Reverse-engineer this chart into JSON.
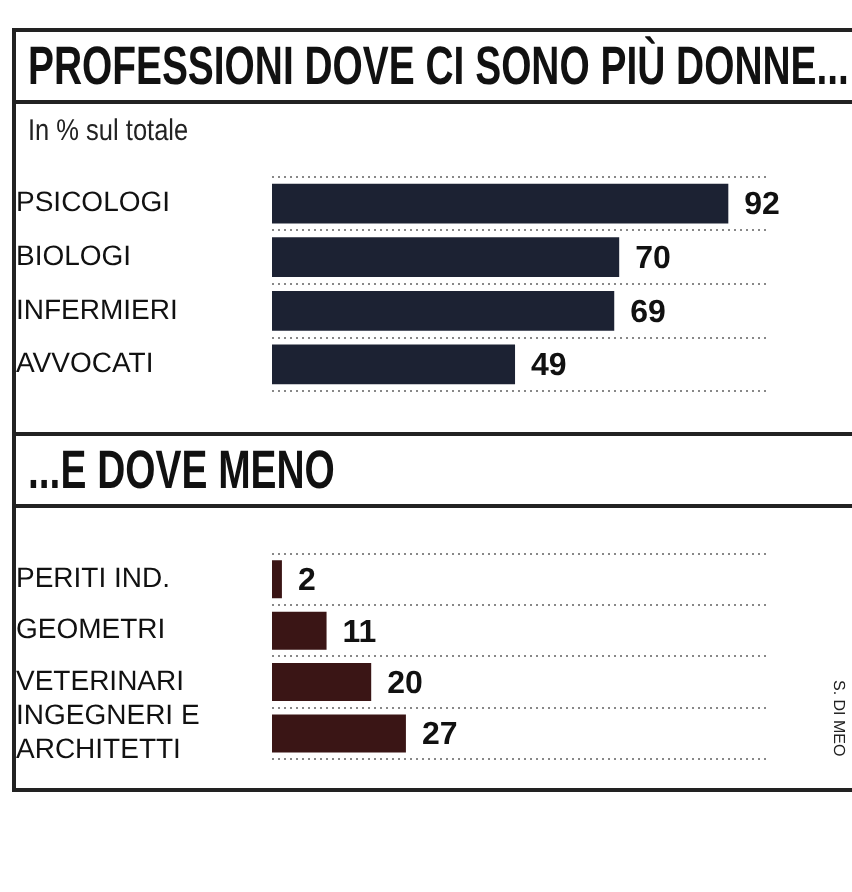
{
  "chart_data": [
    {
      "type": "bar",
      "orientation": "horizontal",
      "title": "PROFESSIONI DOVE CI SONO PIÙ DONNE...",
      "subtitle": "In % sul totale",
      "categories": [
        "PSICOLOGI",
        "BIOLOGI",
        "INFERMIERI",
        "AVVOCATI"
      ],
      "values": [
        92,
        70,
        69,
        49
      ],
      "color": "#1c2233",
      "xlim": [
        0,
        100
      ],
      "data_labels": true,
      "grid": "y",
      "tick_labels": "y"
    },
    {
      "type": "bar",
      "orientation": "horizontal",
      "title": "...E DOVE MENO",
      "categories": [
        "PERITI IND.",
        "GEOMETRI",
        "VETERINARI",
        "INGEGNERI E ARCHITETTI"
      ],
      "values": [
        2,
        11,
        20,
        27
      ],
      "color": "#3a1515",
      "xlim": [
        0,
        100
      ],
      "data_labels": true,
      "grid": "y",
      "tick_labels": "y",
      "annotations": [
        "S. DI MEO"
      ]
    }
  ]
}
